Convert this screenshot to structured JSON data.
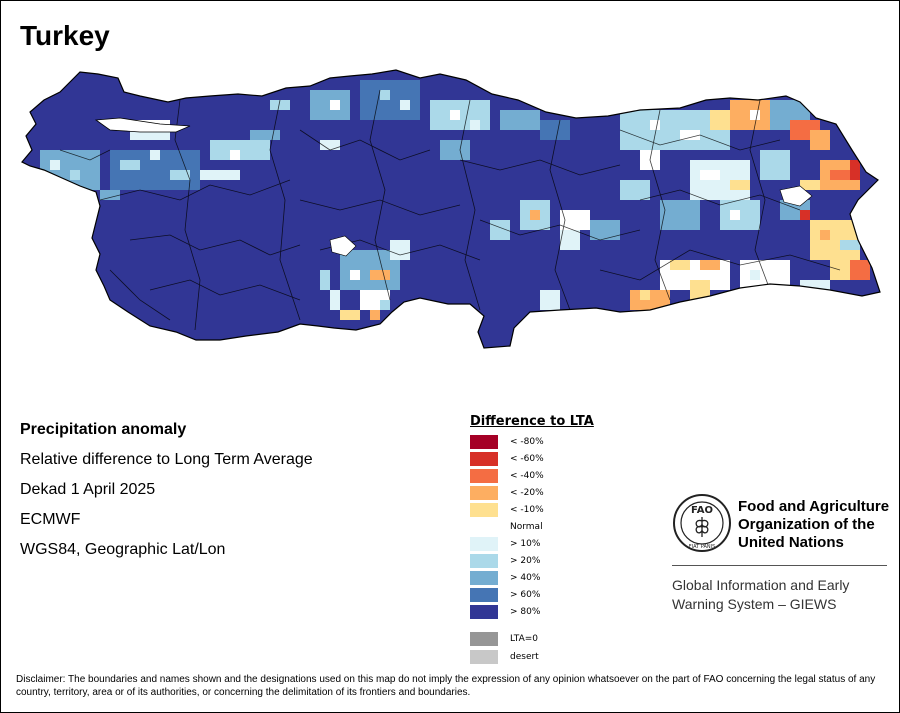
{
  "title": "Turkey",
  "info": {
    "heading": "Precipitation anomaly",
    "subtitle": "Relative difference to Long Term Average",
    "period": "Dekad 1 April 2025",
    "source": "ECMWF",
    "projection": "WGS84, Geographic Lat/Lon"
  },
  "legend": {
    "title": "Difference to LTA",
    "classes": [
      {
        "label": "< -80%",
        "color": "#a50026"
      },
      {
        "label": "< -60%",
        "color": "#d73027"
      },
      {
        "label": "< -40%",
        "color": "#f46d43"
      },
      {
        "label": "< -20%",
        "color": "#fdae61"
      },
      {
        "label": "< -10%",
        "color": "#fee090"
      },
      {
        "label": "Normal",
        "color": "#ffffff"
      },
      {
        "label": "> 10%",
        "color": "#e0f3f8"
      },
      {
        "label": "> 20%",
        "color": "#abd9e9"
      },
      {
        "label": "> 40%",
        "color": "#74add1"
      },
      {
        "label": "> 60%",
        "color": "#4575b4"
      },
      {
        "label": "> 80%",
        "color": "#313695"
      }
    ],
    "extra": [
      {
        "label": "LTA=0",
        "color": "#969696"
      },
      {
        "label": "desert",
        "color": "#c8c8c8"
      }
    ]
  },
  "organization": {
    "name_line1": "Food and Agriculture",
    "name_line2": "Organization of the",
    "name_line3": "United Nations",
    "logo_text": "FAO",
    "logo_motto": "FIAT PANIS",
    "system_line1": "Global Information and Early",
    "system_line2": "Warning System – GIEWS"
  },
  "disclaimer": "Disclaimer: The boundaries and names shown and the designations used on this map do not imply the expression of any opinion whatsoever on the part of FAO concerning the legal status of any country, territory, area or of its authorities, or concerning the delimitation of its frontiers and boundaries."
}
